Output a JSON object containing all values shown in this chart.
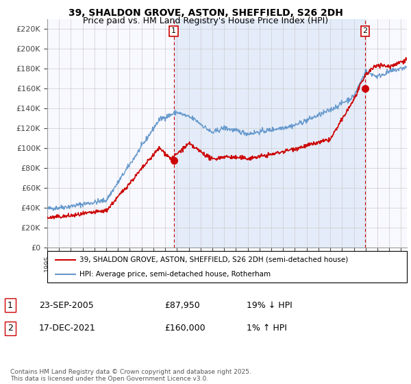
{
  "title": "39, SHALDON GROVE, ASTON, SHEFFIELD, S26 2DH",
  "subtitle": "Price paid vs. HM Land Registry's House Price Index (HPI)",
  "ylabel_ticks": [
    "£0",
    "£20K",
    "£40K",
    "£60K",
    "£80K",
    "£100K",
    "£120K",
    "£140K",
    "£160K",
    "£180K",
    "£200K",
    "£220K"
  ],
  "ytick_values": [
    0,
    20000,
    40000,
    60000,
    80000,
    100000,
    120000,
    140000,
    160000,
    180000,
    200000,
    220000
  ],
  "ylim": [
    0,
    230000
  ],
  "sale1_date_num": 2005.73,
  "sale1_price": 87950,
  "sale1_label": "1",
  "sale2_date_num": 2021.96,
  "sale2_price": 160000,
  "sale2_label": "2",
  "sale_color": "#cc0000",
  "hpi_color": "#6699cc",
  "vline_color": "#cc0000",
  "fill_color": "#ddeeff",
  "grid_color": "#cccccc",
  "background_color": "#ffffff",
  "plot_bg_color": "#f0f4ff",
  "legend_line1": "39, SHALDON GROVE, ASTON, SHEFFIELD, S26 2DH (semi-detached house)",
  "legend_line2": "HPI: Average price, semi-detached house, Rotherham",
  "table_row1": [
    "1",
    "23-SEP-2005",
    "£87,950",
    "19% ↓ HPI"
  ],
  "table_row2": [
    "2",
    "17-DEC-2021",
    "£160,000",
    "1% ↑ HPI"
  ],
  "footer": "Contains HM Land Registry data © Crown copyright and database right 2025.\nThis data is licensed under the Open Government Licence v3.0.",
  "xmin": 1995,
  "xmax": 2025.5
}
